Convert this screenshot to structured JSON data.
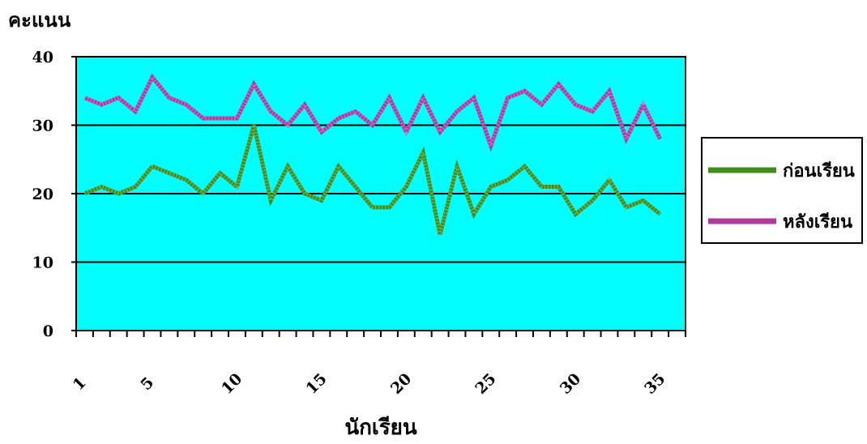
{
  "chart_data": {
    "type": "line",
    "ylabel": "คะแนน",
    "xlabel": "นักเรียน",
    "ylim": [
      0,
      40
    ],
    "yticks": [
      0,
      10,
      20,
      30,
      40
    ],
    "xlim": [
      1,
      36
    ],
    "xticks": [
      1,
      5,
      10,
      15,
      20,
      25,
      30,
      35
    ],
    "grid": true,
    "legend": "right",
    "plot_background": "#00ffff",
    "x": [
      1,
      2,
      3,
      4,
      5,
      6,
      7,
      8,
      9,
      10,
      11,
      12,
      13,
      14,
      15,
      16,
      17,
      18,
      19,
      20,
      21,
      22,
      23,
      24,
      25,
      26,
      27,
      28,
      29,
      30,
      31,
      32,
      33,
      34,
      35,
      36
    ],
    "series": [
      {
        "name": "ก่อนเรียน",
        "color": "#3f8f1f",
        "values": [
          20,
          21,
          20,
          21,
          24,
          23,
          22,
          20,
          23,
          21,
          30,
          19,
          24,
          20,
          19,
          24,
          21,
          18,
          18,
          21,
          26,
          14,
          24,
          17,
          21,
          22,
          24,
          21,
          21,
          17,
          19,
          22,
          18,
          19,
          17,
          null
        ]
      },
      {
        "name": "หลังเรียน",
        "color": "#b03aa0",
        "values": [
          34,
          33,
          34,
          32,
          37,
          34,
          33,
          31,
          31,
          31,
          36,
          32,
          30,
          33,
          29,
          31,
          32,
          30,
          34,
          29,
          34,
          29,
          32,
          34,
          27,
          34,
          35,
          33,
          36,
          33,
          32,
          35,
          28,
          33,
          28,
          null
        ]
      }
    ]
  }
}
